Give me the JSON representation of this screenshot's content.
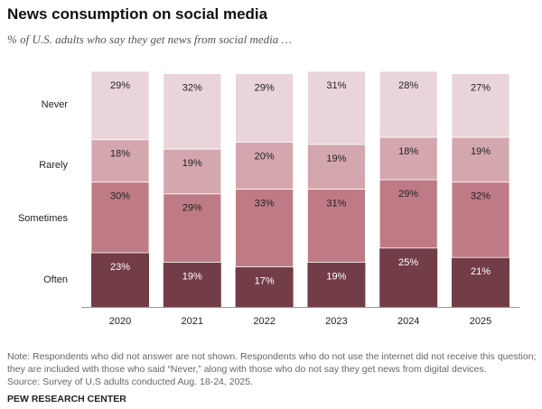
{
  "header": {
    "title": "News consumption on social media",
    "subtitle": "% of U.S. adults who say they get news from social media …"
  },
  "chart_data": {
    "type": "bar",
    "stacked": true,
    "categories": [
      "2020",
      "2021",
      "2022",
      "2023",
      "2024",
      "2025"
    ],
    "series": [
      {
        "name": "Often",
        "values": [
          23,
          19,
          17,
          19,
          25,
          21
        ],
        "color": "#733d47",
        "label_color": "#ffffff"
      },
      {
        "name": "Sometimes",
        "values": [
          30,
          29,
          33,
          31,
          29,
          32
        ],
        "color": "#bf7b85",
        "label_color": "#222222"
      },
      {
        "name": "Rarely",
        "values": [
          18,
          19,
          20,
          19,
          18,
          19
        ],
        "color": "#d4a7af",
        "label_color": "#222222"
      },
      {
        "name": "Never",
        "values": [
          29,
          32,
          29,
          31,
          28,
          27
        ],
        "color": "#e9d4da",
        "label_color": "#222222"
      }
    ],
    "ylim": [
      0,
      100
    ],
    "grid": false
  },
  "footer": {
    "note1": "Note: Respondents who did not answer are not shown. Respondents who do not use the internet did not receive this question;",
    "note2": "they are included with those who said “Never,” along with those who do not say they get news from digital devices.",
    "source": "Source: Survey of U.S adults conducted Aug. 18-24, 2025.",
    "brand": "PEW RESEARCH CENTER"
  }
}
